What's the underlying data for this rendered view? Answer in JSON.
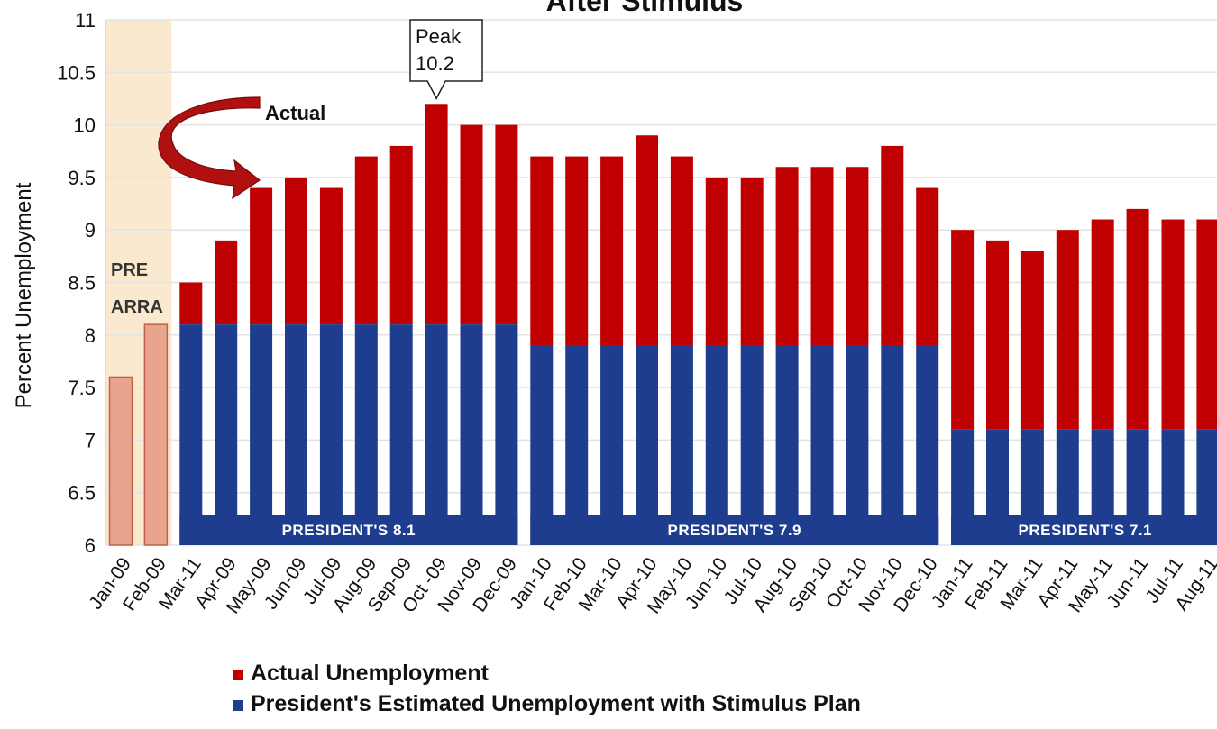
{
  "chart_data": {
    "type": "bar",
    "title": "After Stimulus",
    "ylabel": "Percent Unemployment",
    "xlabel": "",
    "ylim": [
      6,
      11
    ],
    "yticks": [
      "6",
      "6.5",
      "7",
      "7.5",
      "8",
      "8.5",
      "9",
      "9.5",
      "10",
      "10.5",
      "11"
    ],
    "grid": true,
    "categories": [
      "Jan-09",
      "Feb-09",
      "Mar-11",
      "Apr-09",
      "May-09",
      "Jun-09",
      "Jul-09",
      "Aug-09",
      "Sep-09",
      "Oct -09",
      "Nov-09",
      "Dec-09",
      "Jan-10",
      "Feb-10",
      "Mar-10",
      "Apr-10",
      "May-10",
      "Jun-10",
      "Jul-10",
      "Aug-10",
      "Sep-10",
      "Oct-10",
      "Nov-10",
      "Dec-10",
      "Jan-11",
      "Feb-11",
      "Mar-11",
      "Apr-11",
      "May-11",
      "Jun-11",
      "Jul-11",
      "Aug-11"
    ],
    "pre_arra_values": [
      7.6,
      8.1
    ],
    "series": [
      {
        "name": "Actual Unemployment",
        "color": "#c00000",
        "values": [
          7.6,
          8.1,
          8.5,
          8.9,
          9.4,
          9.5,
          9.4,
          9.7,
          9.8,
          10.2,
          10.0,
          10.0,
          9.7,
          9.7,
          9.7,
          9.9,
          9.7,
          9.5,
          9.5,
          9.6,
          9.6,
          9.6,
          9.8,
          9.4,
          9.0,
          8.9,
          8.8,
          9.0,
          9.1,
          9.2,
          9.1,
          9.1
        ]
      },
      {
        "name": "President's Estimated Unemployment with Stimulus Plan",
        "color": "#1f3d8f",
        "values": [
          null,
          null,
          8.1,
          8.1,
          8.1,
          8.1,
          8.1,
          8.1,
          8.1,
          8.1,
          8.1,
          8.1,
          7.9,
          7.9,
          7.9,
          7.9,
          7.9,
          7.9,
          7.9,
          7.9,
          7.9,
          7.9,
          7.9,
          7.9,
          7.1,
          7.1,
          7.1,
          7.1,
          7.1,
          7.1,
          7.1,
          7.1
        ]
      }
    ],
    "bands": [
      {
        "label": "PRESIDENT'S  8.1",
        "start": 2,
        "end": 11
      },
      {
        "label": "PRESIDENT'S  7.9",
        "start": 12,
        "end": 23
      },
      {
        "label": "PRESIDENT'S  7.1",
        "start": 24,
        "end": 31
      }
    ],
    "annotations": {
      "peak_line1": "Peak",
      "peak_line2": "10.2",
      "peak_index": 9,
      "actual": "Actual",
      "pre_line1": "PRE",
      "pre_line2": "ARRA"
    },
    "legend": {
      "placement": "bottom-left"
    },
    "colors": {
      "actual": "#c00000",
      "estimate": "#1f3d8f",
      "pre_arra": "#e8a48c",
      "pre_arra_stroke": "#c0604a",
      "pre_band": "#fbe9cf",
      "arrow": "#b01010"
    }
  }
}
